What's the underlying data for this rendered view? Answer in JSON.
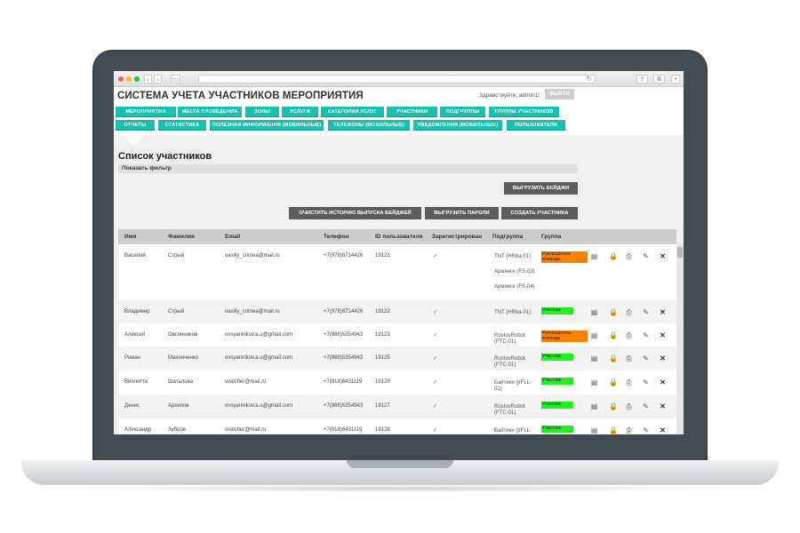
{
  "app": {
    "title": "СИСТЕМА УЧЕТА УЧАСТНИКОВ МЕРОПРИЯТИЯ",
    "greeting": "Здравствуйте, admin1!",
    "logout_label": "ВЫЙТИ"
  },
  "menu_row1": [
    "МЕРОПРИЯТИЯ",
    "МЕСТА ПРОВЕДЕНИЯ",
    "ЗОНЫ",
    "УСЛУГИ",
    "КАТЕГОРИИ УСЛУГ",
    "УЧАСТНИКИ",
    "ПОДГРУППЫ",
    "ГРУППЫ УЧАСТНИКОВ"
  ],
  "menu_row2": [
    "ОТЧЕТЫ",
    "СТАТИСТИКА",
    "ПОЛЕЗНАЯ ИНФОРМАЦИЯ (МОБИЛЬНЫЕ)",
    "ТЕЛЕФОНЫ (МОБИЛЬНЫЕ)",
    "УВЕДОМЛЕНИЯ (МОБИЛЬНЫЕ)",
    "ПОЛЬЗОВАТЕЛИ"
  ],
  "page": {
    "title": "Список участников",
    "filter_label": "Показать фильтр"
  },
  "buttons": {
    "export_badges": "ВЫГРУЗИТЬ БЕЙДЖИ",
    "clear_history": "ОЧИСТИТЬ ИСТОРИЮ ВЫПУСКА БЕЙДЖЕЙ",
    "export_passwords": "ВЫГРУЗИТЬ ПАРОЛИ",
    "create_participant": "СОЗДАТЬ УЧАСТНИКА"
  },
  "table": {
    "headers": [
      "Имя",
      "Фамилия",
      "Email",
      "Телефон",
      "ID пользователя",
      "Зарегистрирован",
      "Подгруппа",
      "Группа"
    ],
    "rows": [
      {
        "first": "Василий",
        "last": "Стрый",
        "email": "vasiliy_crimea@mail.ru",
        "phone": "+7(978)8714426",
        "id": "19121",
        "registered": "✔",
        "subgroups": [
          "TNT (HRba-01)",
          "Армянск (FS-03)",
          "Армянск (FS-04)"
        ],
        "group": "Руководитель команды",
        "group_color": "#ff7f00"
      },
      {
        "first": "Владимир",
        "last": "Стрый",
        "email": "vasiliy_crimea@mail.ru",
        "phone": "+7(978)8714426",
        "id": "19122",
        "registered": "✔",
        "subgroups": [
          "TNT (HRba-01)"
        ],
        "group": "Участник",
        "group_color": "#22ee22"
      },
      {
        "first": "Алексей",
        "last": "Овсянников",
        "email": "ovsyannikov.a.u@gmail.com",
        "phone": "+7(988)5354943",
        "id": "19123",
        "registered": "✔",
        "subgroups": [
          "RostovRobot (FTC-01)"
        ],
        "group": "Руководитель команды",
        "group_color": "#ff7f00"
      },
      {
        "first": "Роман",
        "last": "Махонченко",
        "email": "ovsyannikov.a.u@gmail.com",
        "phone": "+7(988)5354943",
        "id": "19125",
        "registered": "✔",
        "subgroups": [
          "RostovRobot (FTC-01)"
        ],
        "group": "Участник",
        "group_color": "#22ee22"
      },
      {
        "first": "Виолетта",
        "last": "Шаталова",
        "email": "svalcher@mail.ru",
        "phone": "+7(918)6431119",
        "id": "19126",
        "registered": "✔",
        "subgroups": [
          "Байтики (jrFLL-01)"
        ],
        "group": "Участник",
        "group_color": "#22ee22"
      },
      {
        "first": "Денис",
        "last": "Архипов",
        "email": "ovsyannikov.a.u@gmail.com",
        "phone": "+7(988)5354943",
        "id": "19127",
        "registered": "✔",
        "subgroups": [
          "RostovRobot (FTC-01)"
        ],
        "group": "Участник",
        "group_color": "#22ee22"
      },
      {
        "first": "Александр",
        "last": "Зубров",
        "email": "svalcher@mail.ru",
        "phone": "+7(918)6431119",
        "id": "19128",
        "registered": "✔",
        "subgroups": [
          "Байтики (jrFLL-01)"
        ],
        "group": "Участник",
        "group_color": "#22ee22"
      }
    ],
    "row_actions": [
      "document-icon",
      "lock-icon",
      "print-icon",
      "edit-icon",
      "delete-icon"
    ]
  },
  "colors": {
    "accent": "#19c0b0",
    "button_dark": "#5c5c5c",
    "leader_badge": "#ff7f00",
    "member_badge": "#22ee22"
  }
}
